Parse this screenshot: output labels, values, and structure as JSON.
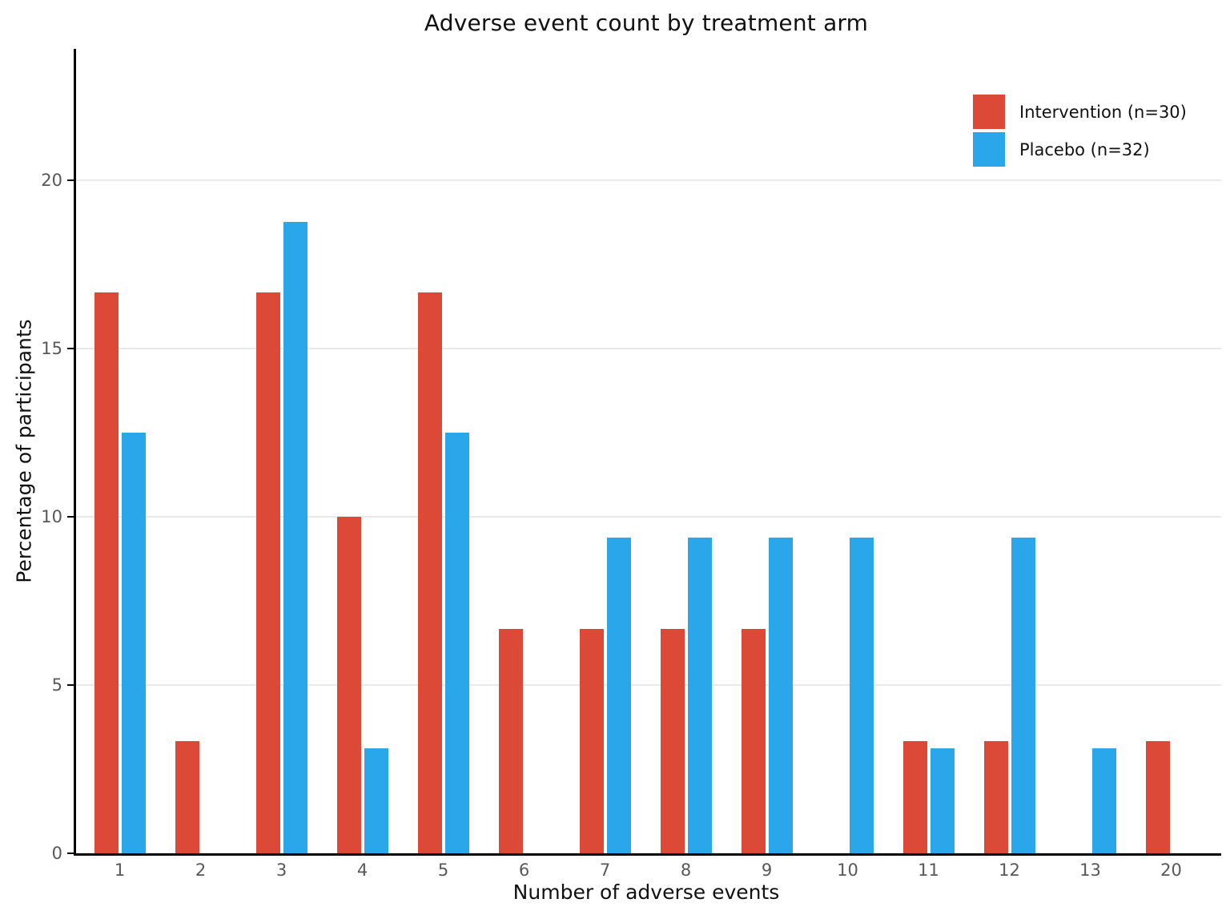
{
  "title": "Adverse event count by treatment arm",
  "chart_data": {
    "type": "bar",
    "title": "Adverse event count by treatment arm",
    "xlabel": "Number of adverse events",
    "ylabel": "Percentage of participants",
    "categories": [
      "1",
      "2",
      "3",
      "4",
      "5",
      "6",
      "7",
      "8",
      "9",
      "10",
      "11",
      "12",
      "13",
      "20"
    ],
    "series": [
      {
        "name": "Intervention (n=30)",
        "color": "#dc4937",
        "values": [
          16.67,
          3.33,
          16.67,
          10.0,
          16.67,
          6.67,
          6.67,
          6.67,
          6.67,
          0,
          3.33,
          3.33,
          0,
          3.33
        ]
      },
      {
        "name": "Placebo (n=32)",
        "color": "#29a7ea",
        "values": [
          12.5,
          0,
          18.75,
          3.125,
          12.5,
          0,
          9.375,
          9.375,
          9.375,
          9.375,
          3.125,
          9.375,
          3.125,
          0
        ]
      }
    ],
    "ylim": [
      0,
      23.9
    ],
    "yticks": [
      0,
      5,
      10,
      15,
      20
    ],
    "grid": "horizontal",
    "gridline_color": "#e9e9e9",
    "axis_color": "#000000",
    "tick_label_color": "#58585a",
    "legend_position": "upper right",
    "legend_frame": false
  }
}
